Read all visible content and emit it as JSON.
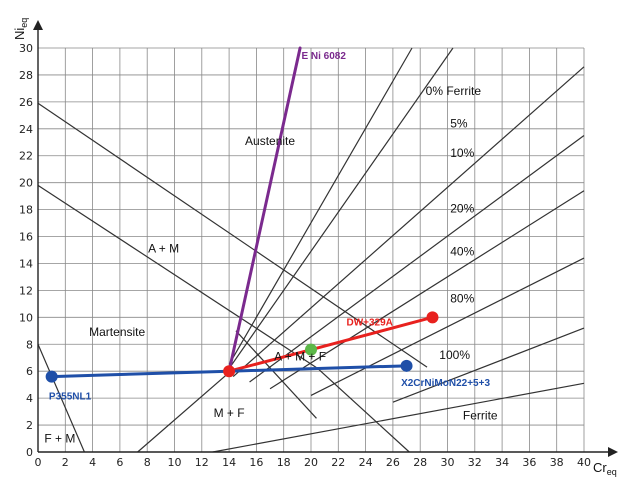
{
  "chart_data": {
    "type": "scatter",
    "title": "",
    "xlabel": "Cr",
    "xlabel_sub": "eq",
    "ylabel": "Ni",
    "ylabel_sub": "eq",
    "xlim": [
      0,
      40
    ],
    "ylim": [
      0,
      30
    ],
    "x_ticks": [
      0,
      2,
      4,
      6,
      8,
      10,
      12,
      14,
      16,
      18,
      20,
      22,
      24,
      26,
      28,
      30,
      32,
      34,
      36,
      38,
      40
    ],
    "y_ticks": [
      0,
      2,
      4,
      6,
      8,
      10,
      12,
      14,
      16,
      18,
      20,
      22,
      24,
      26,
      28,
      30
    ],
    "grid": true,
    "region_labels": [
      {
        "text": "Austenite",
        "x": 17,
        "y": 22.8
      },
      {
        "text": "A + M",
        "x": 9.2,
        "y": 14.8
      },
      {
        "text": "Martensite",
        "x": 5.8,
        "y": 8.6
      },
      {
        "text": "A + M + F",
        "x": 19.2,
        "y": 6.8
      },
      {
        "text": "M + F",
        "x": 14,
        "y": 2.6
      },
      {
        "text": "F + M",
        "x": 1.6,
        "y": 0.7
      },
      {
        "text": "Ferrite",
        "x": 32.4,
        "y": 2.4
      }
    ],
    "ferrite_lines": [
      {
        "label": "0% Ferrite",
        "label_pos": [
          28.4,
          26.5
        ],
        "x1": 14,
        "y1": 6.5,
        "x2": 27.4,
        "y2": 30
      },
      {
        "label": "5%",
        "label_pos": [
          30.2,
          24.1
        ],
        "x1": 14,
        "y1": 6.2,
        "x2": 30.4,
        "y2": 30
      },
      {
        "label": "10%",
        "label_pos": [
          30.2,
          21.9
        ],
        "x1": 14.3,
        "y1": 5.6,
        "x2": 40,
        "y2": 28.6
      },
      {
        "label": "20%",
        "label_pos": [
          30.2,
          17.8
        ],
        "x1": 15.5,
        "y1": 5.2,
        "x2": 40,
        "y2": 23.5
      },
      {
        "label": "40%",
        "label_pos": [
          30.2,
          14.6
        ],
        "x1": 17,
        "y1": 4.7,
        "x2": 40,
        "y2": 19.4
      },
      {
        "label": "80%",
        "label_pos": [
          30.2,
          11.1
        ],
        "x1": 20,
        "y1": 4.2,
        "x2": 40,
        "y2": 14.4
      },
      {
        "label": "100%",
        "label_pos": [
          29.4,
          6.9
        ],
        "x1": 26,
        "y1": 3.7,
        "x2": 40,
        "y2": 9.2
      },
      {
        "label": "",
        "label_pos": null,
        "x1": 12.8,
        "y1": 0,
        "x2": 40,
        "y2": 5.1
      }
    ],
    "boundary_lines": [
      {
        "x1": 0,
        "y1": 25.9,
        "x2": 28.5,
        "y2": 6.3
      },
      {
        "x1": 0,
        "y1": 19.8,
        "x2": 20.5,
        "y2": 6.2
      },
      {
        "x1": 20.5,
        "y1": 6.2,
        "x2": 27.2,
        "y2": 0
      },
      {
        "x1": 14.5,
        "y1": 9,
        "x2": 20.4,
        "y2": 2.5
      },
      {
        "x1": 7.3,
        "y1": 0,
        "x2": 14,
        "y2": 5.9
      },
      {
        "x1": 0,
        "y1": 8,
        "x2": 3.4,
        "y2": 0
      }
    ],
    "series": [
      {
        "name": "E Ni 6082",
        "color": "#7b2a8e",
        "label_pos": [
          19.3,
          29.2
        ],
        "points": [
          [
            14,
            6
          ],
          [
            19.2,
            30
          ]
        ]
      },
      {
        "name": "DW+329A",
        "color": "#e8211e",
        "label_pos": [
          22.6,
          9.4
        ],
        "points": [
          [
            14,
            6
          ],
          [
            20,
            7.6
          ],
          [
            28.9,
            10
          ]
        ]
      },
      {
        "name": "P355NL1",
        "color": "#1f4fa8",
        "label_pos": [
          0.8,
          3.9
        ],
        "points": [
          [
            1,
            5.6
          ],
          [
            14,
            6
          ],
          [
            27,
            6.4
          ]
        ]
      },
      {
        "name": "X2CrNiMoN22+5+3",
        "color": "#1f4fa8",
        "label_pos": [
          26.6,
          4.9
        ],
        "points": []
      }
    ],
    "markers": [
      {
        "x": 1,
        "y": 5.6,
        "color": "#1f4fa8"
      },
      {
        "x": 27,
        "y": 6.4,
        "color": "#1f4fa8"
      },
      {
        "x": 14,
        "y": 6,
        "color": "#e8211e"
      },
      {
        "x": 28.9,
        "y": 10,
        "color": "#e8211e"
      },
      {
        "x": 20,
        "y": 7.6,
        "color": "#5cb848"
      }
    ]
  }
}
